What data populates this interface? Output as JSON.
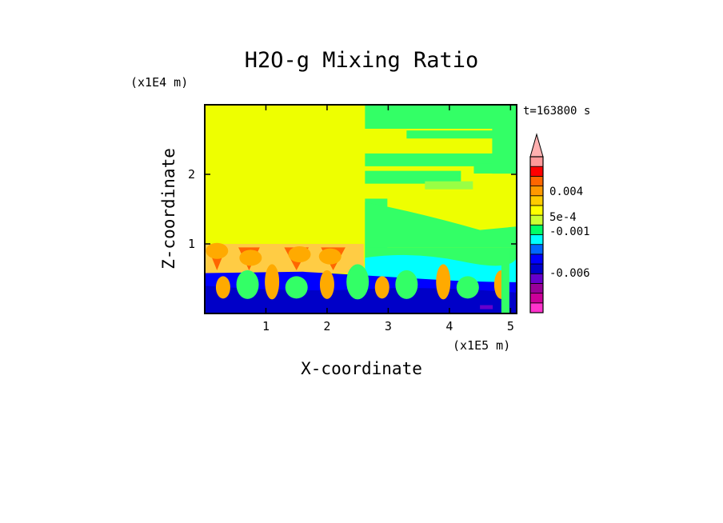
{
  "chart_data": {
    "type": "heatmap",
    "title": "H2O-g Mixing Ratio",
    "xlabel": "X-coordinate",
    "ylabel": "Z-coordinate",
    "x_unit": "(x1E5 m)",
    "y_unit": "(x1E4 m)",
    "time_label": "t=163800 s",
    "xlim": [
      0,
      5.1
    ],
    "ylim": [
      0,
      3.0
    ],
    "x_ticks": [
      "1",
      "2",
      "3",
      "4",
      "5"
    ],
    "y_ticks": [
      "1",
      "2"
    ],
    "colorbar": {
      "extend": "max",
      "colors": [
        "#ff33cc",
        "#cc0099",
        "#990099",
        "#6600cc",
        "#0000cc",
        "#0000ff",
        "#0066ff",
        "#00ffff",
        "#00ff66",
        "#ccff33",
        "#ffff00",
        "#ffcc00",
        "#ff9900",
        "#ff6600",
        "#ff0000",
        "#ff9999",
        "#ffb0b0"
      ],
      "labels": [
        "0.004",
        "5e-4",
        "-0.001",
        "-0.006"
      ]
    }
  }
}
